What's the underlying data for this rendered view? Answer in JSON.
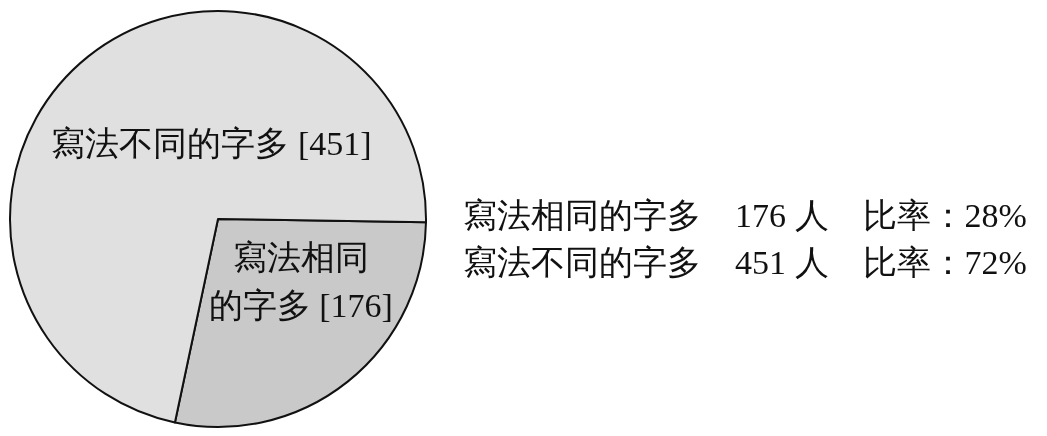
{
  "chart_data": {
    "type": "pie",
    "categories": [
      "寫法相同的字多",
      "寫法不同的字多"
    ],
    "values": [
      176,
      451
    ],
    "colors": [
      "#c9c9c9",
      "#e0e0e0"
    ],
    "value_labels": [
      "[176]",
      "[451]"
    ],
    "annotations": [
      "寫法相同的字多　176 人　比率：28%",
      "寫法不同的字多　451 人　比率：72%"
    ]
  }
}
